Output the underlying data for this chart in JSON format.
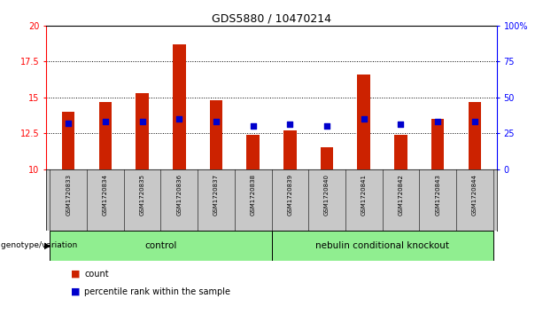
{
  "title": "GDS5880 / 10470214",
  "samples": [
    "GSM1720833",
    "GSM1720834",
    "GSM1720835",
    "GSM1720836",
    "GSM1720837",
    "GSM1720838",
    "GSM1720839",
    "GSM1720840",
    "GSM1720841",
    "GSM1720842",
    "GSM1720843",
    "GSM1720844"
  ],
  "count_values": [
    14.0,
    14.7,
    15.3,
    18.7,
    14.8,
    12.4,
    12.7,
    11.5,
    16.6,
    12.4,
    13.5,
    14.7
  ],
  "count_base": 10,
  "percentile_values": [
    32,
    33,
    33,
    35,
    33,
    30,
    31,
    30,
    35,
    31,
    33,
    33
  ],
  "ylim_left": [
    10,
    20
  ],
  "ylim_right": [
    0,
    100
  ],
  "yticks_left": [
    10,
    12.5,
    15,
    17.5,
    20
  ],
  "yticks_right": [
    0,
    25,
    50,
    75,
    100
  ],
  "ytick_labels_left": [
    "10",
    "12.5",
    "15",
    "17.5",
    "20"
  ],
  "ytick_labels_right": [
    "0",
    "25",
    "50",
    "75",
    "100%"
  ],
  "control_samples": 6,
  "knockout_samples": 6,
  "group_labels": [
    "control",
    "nebulin conditional knockout"
  ],
  "group_color": "#90EE90",
  "group_label_prefix": "genotype/variation",
  "bar_color": "#CC2200",
  "percentile_color": "#0000CC",
  "bar_width": 0.35,
  "dot_size": 25,
  "sample_bg_color": "#C8C8C8",
  "legend_items": [
    "count",
    "percentile rank within the sample"
  ]
}
